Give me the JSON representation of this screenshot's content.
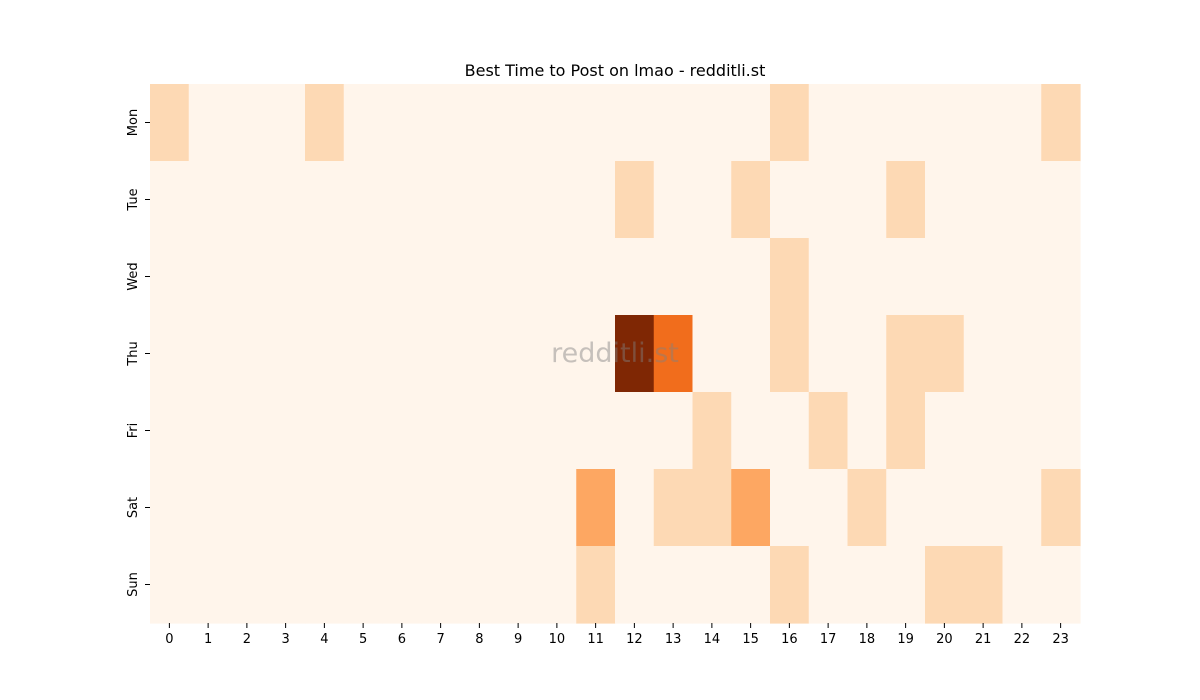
{
  "chart_data": {
    "type": "heatmap",
    "title": "Best Time to Post on lmao - redditli.st",
    "x_labels": [
      "0",
      "1",
      "2",
      "3",
      "4",
      "5",
      "6",
      "7",
      "8",
      "9",
      "10",
      "11",
      "12",
      "13",
      "14",
      "15",
      "16",
      "17",
      "18",
      "19",
      "20",
      "21",
      "22",
      "23"
    ],
    "y_labels": [
      "Mon",
      "Tue",
      "Wed",
      "Thu",
      "Fri",
      "Sat",
      "Sun"
    ],
    "values": [
      [
        1,
        0,
        0,
        0,
        1,
        0,
        0,
        0,
        0,
        0,
        0,
        0,
        0,
        0,
        0,
        0,
        1,
        0,
        0,
        0,
        0,
        0,
        0,
        1
      ],
      [
        0,
        0,
        0,
        0,
        0,
        0,
        0,
        0,
        0,
        0,
        0,
        0,
        1,
        0,
        0,
        1,
        0,
        0,
        0,
        1,
        0,
        0,
        0,
        0
      ],
      [
        0,
        0,
        0,
        0,
        0,
        0,
        0,
        0,
        0,
        0,
        0,
        0,
        0,
        0,
        0,
        0,
        1,
        0,
        0,
        0,
        0,
        0,
        0,
        0
      ],
      [
        0,
        0,
        0,
        0,
        0,
        0,
        0,
        0,
        0,
        0,
        0,
        0,
        6,
        4,
        0,
        0,
        1,
        0,
        0,
        1,
        1,
        0,
        0,
        0
      ],
      [
        0,
        0,
        0,
        0,
        0,
        0,
        0,
        0,
        0,
        0,
        0,
        0,
        0,
        0,
        1,
        0,
        0,
        1,
        0,
        1,
        0,
        0,
        0,
        0
      ],
      [
        0,
        0,
        0,
        0,
        0,
        0,
        0,
        0,
        0,
        0,
        0,
        3,
        0,
        1,
        1,
        3,
        0,
        0,
        1,
        0,
        0,
        0,
        0,
        1
      ],
      [
        0,
        0,
        0,
        0,
        0,
        0,
        0,
        0,
        0,
        0,
        0,
        1,
        0,
        0,
        0,
        0,
        1,
        0,
        0,
        0,
        1,
        1,
        0,
        0
      ]
    ],
    "color_scale": {
      "0": "#fff5eb",
      "1": "#fdd9b4",
      "3": "#fda762",
      "4": "#f16d1c",
      "6": "#7f2704"
    },
    "watermark": "redditli.st"
  }
}
